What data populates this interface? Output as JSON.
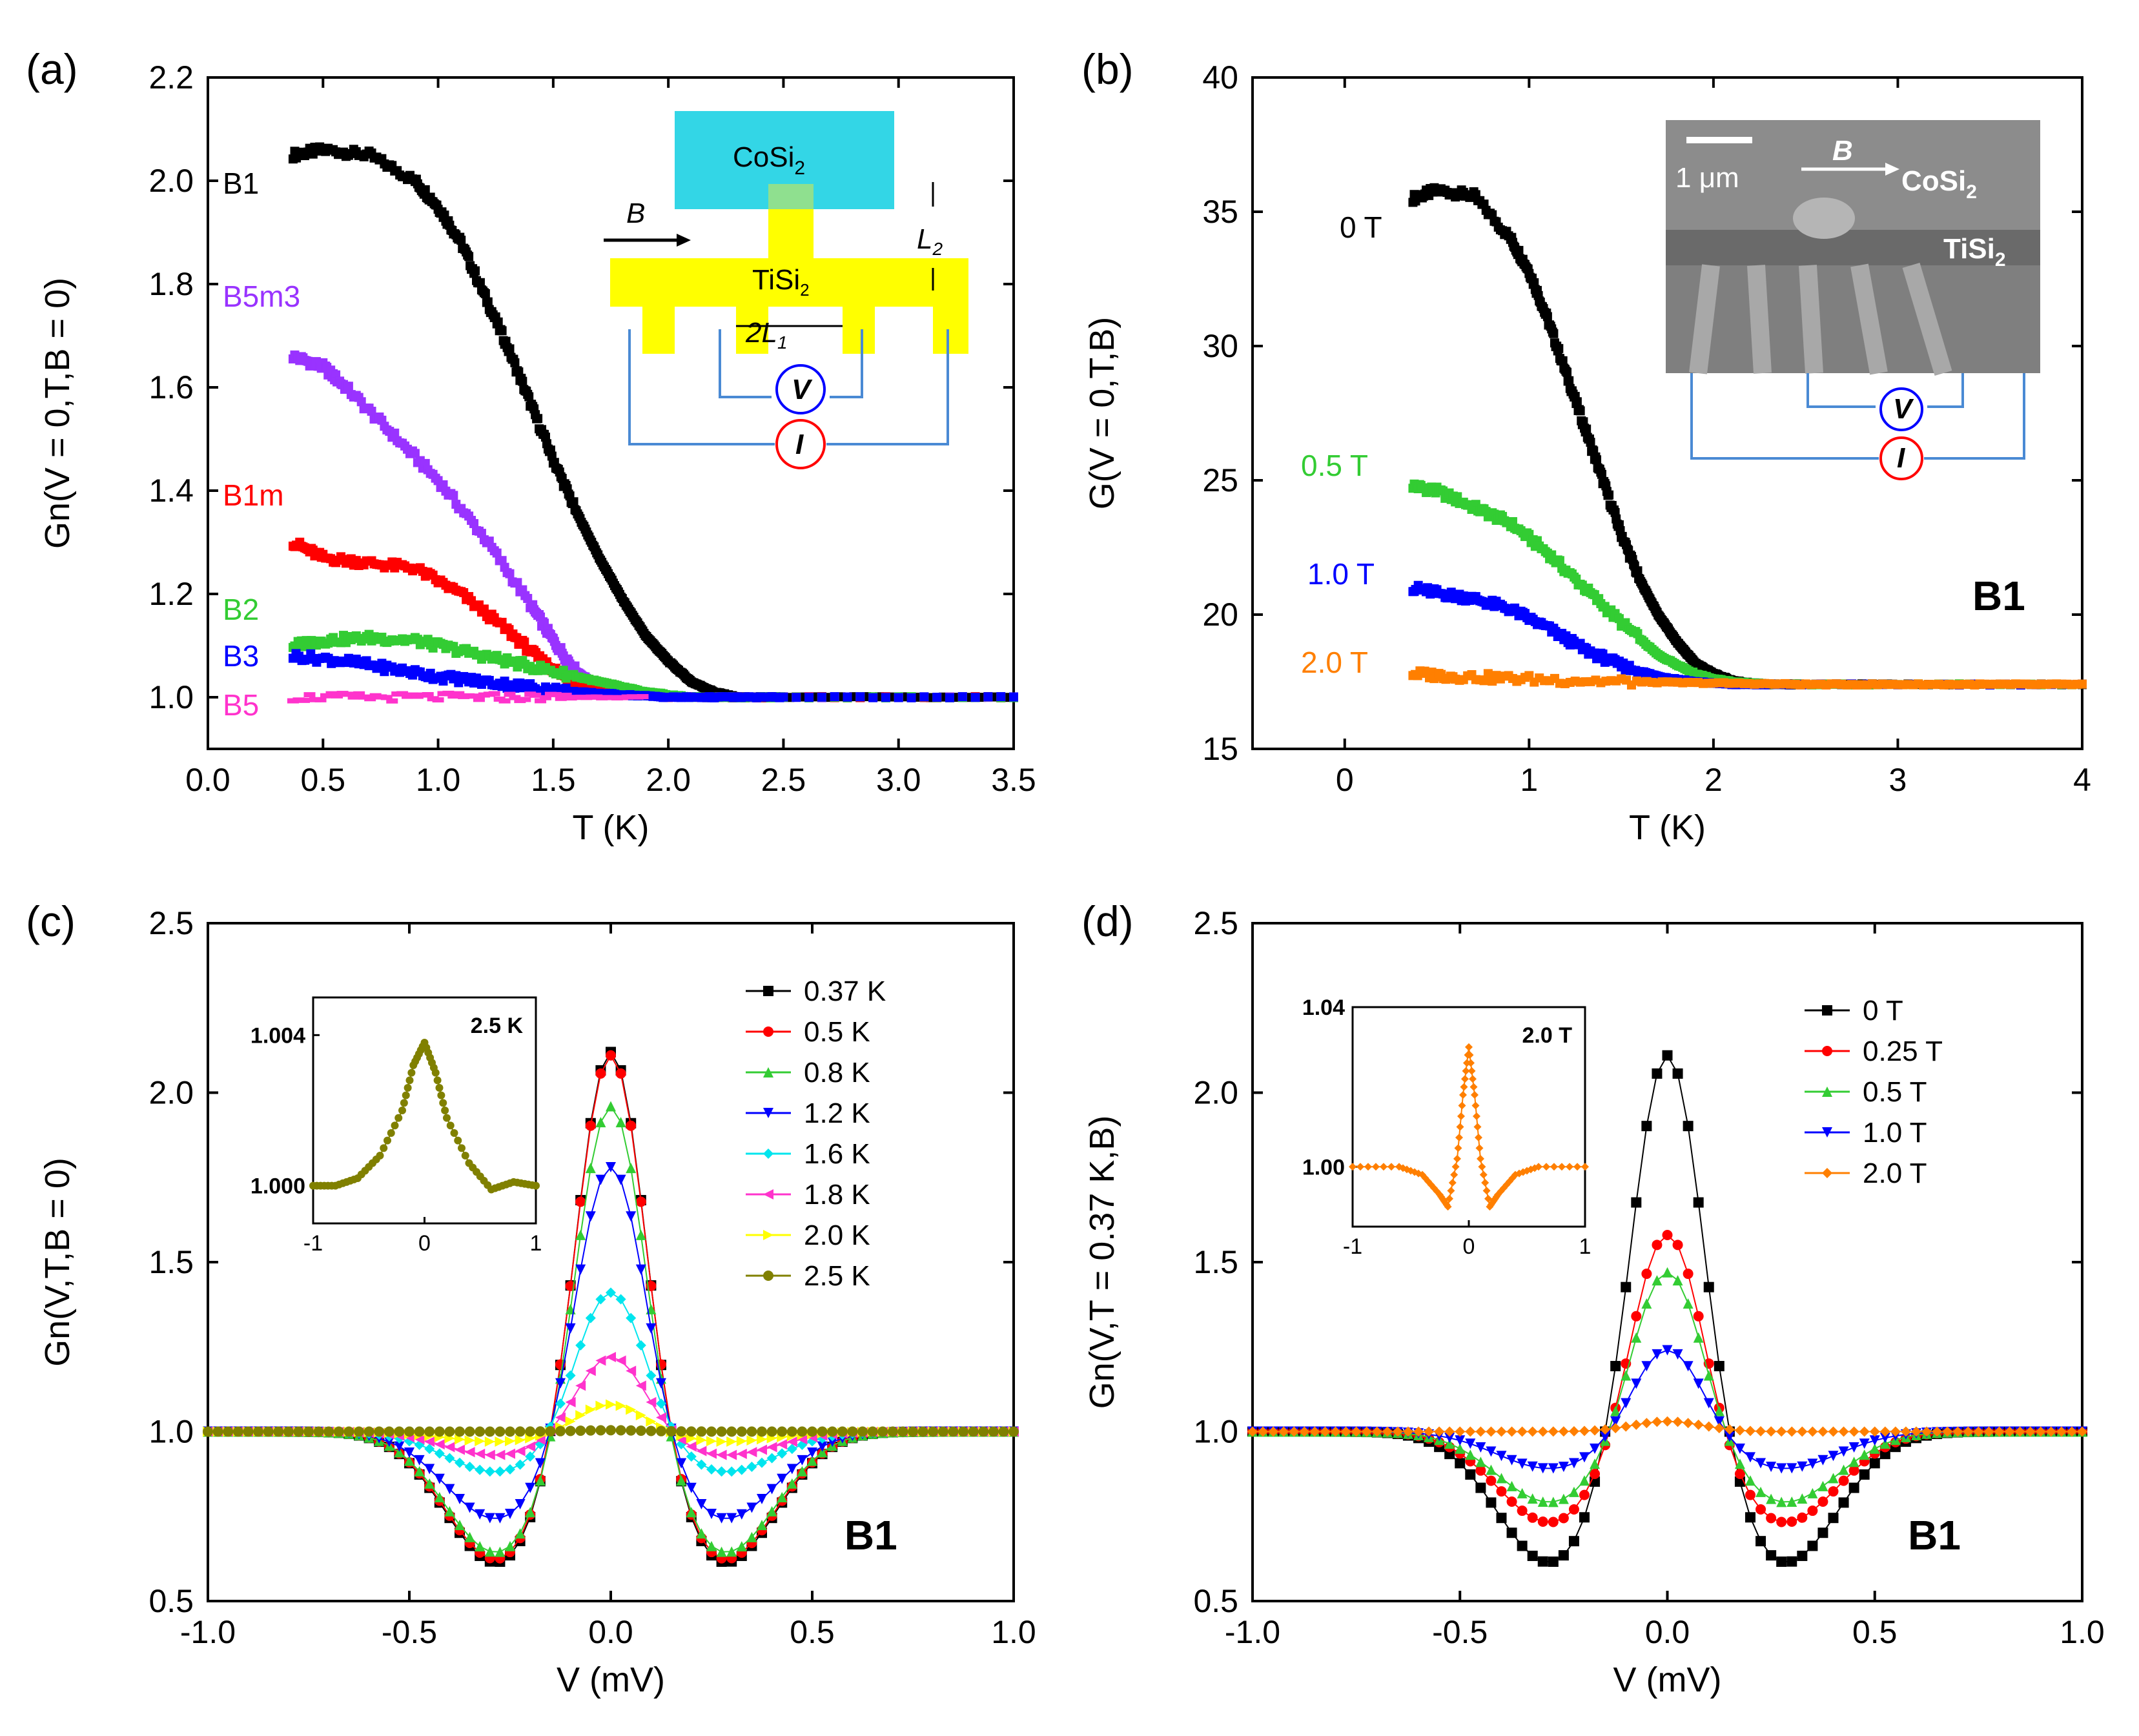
{
  "chart_data": [
    {
      "panel": "(a)",
      "type": "scatter",
      "xlabel": "T (K)",
      "ylabel": "Gn(V = 0,T,B = 0)",
      "xlim": [
        0.0,
        3.5
      ],
      "ylim": [
        0.9,
        2.2
      ],
      "xticks": [
        "0.0",
        "0.5",
        "1.0",
        "1.5",
        "2.0",
        "2.5",
        "3.0",
        "3.5"
      ],
      "yticks": [
        "1.0",
        "1.2",
        "1.4",
        "1.6",
        "1.8",
        "2.0",
        "2.2"
      ],
      "inset": {
        "material_top": "CoSi2",
        "material_bottom": "TiSi2",
        "field": "B",
        "length1": "2L1",
        "length2": "L2",
        "voltmeter": "V",
        "current": "I"
      },
      "series": [
        {
          "name": "B1",
          "color": "#000000",
          "x": [
            0.37,
            0.5,
            0.7,
            0.9,
            1.0,
            1.1,
            1.2,
            1.3,
            1.4,
            1.5,
            1.6,
            1.7,
            1.8,
            1.9,
            2.0,
            2.1,
            2.2,
            2.3,
            2.5,
            3.0,
            3.5
          ],
          "y": [
            2.05,
            2.06,
            2.05,
            2.0,
            1.95,
            1.88,
            1.78,
            1.68,
            1.57,
            1.46,
            1.36,
            1.27,
            1.19,
            1.12,
            1.07,
            1.03,
            1.01,
            1.0,
            1.0,
            1.0,
            1.0
          ]
        },
        {
          "name": "B5m3",
          "color": "#9933ff",
          "x": [
            0.37,
            0.5,
            0.6,
            0.8,
            1.0,
            1.2,
            1.4,
            1.5,
            1.6,
            1.7,
            1.8,
            2.0,
            2.5,
            3.5
          ],
          "y": [
            1.66,
            1.64,
            1.6,
            1.51,
            1.42,
            1.31,
            1.18,
            1.11,
            1.05,
            1.02,
            1.01,
            1.0,
            1.0,
            1.0
          ]
        },
        {
          "name": "B1m",
          "color": "#ff0000",
          "x": [
            0.37,
            0.5,
            0.7,
            0.9,
            1.1,
            1.3,
            1.45,
            1.55,
            1.65,
            1.8,
            2.0,
            2.5,
            3.5
          ],
          "y": [
            1.3,
            1.27,
            1.26,
            1.25,
            1.2,
            1.13,
            1.07,
            1.04,
            1.02,
            1.01,
            1.0,
            1.0,
            1.0
          ]
        },
        {
          "name": "B2",
          "color": "#33cc33",
          "x": [
            0.37,
            0.5,
            0.7,
            0.9,
            1.1,
            1.3,
            1.5,
            1.7,
            1.9,
            2.1,
            2.3,
            2.5,
            3.5
          ],
          "y": [
            1.1,
            1.11,
            1.115,
            1.11,
            1.09,
            1.07,
            1.05,
            1.03,
            1.01,
            1.0,
            1.0,
            1.0,
            1.0
          ]
        },
        {
          "name": "B3",
          "color": "#0000ff",
          "x": [
            0.37,
            0.6,
            0.8,
            1.0,
            1.2,
            1.4,
            1.6,
            1.8,
            2.0,
            2.2,
            2.5,
            3.5
          ],
          "y": [
            1.08,
            1.07,
            1.055,
            1.04,
            1.03,
            1.02,
            1.01,
            1.005,
            1.0,
            1.0,
            1.0,
            1.0
          ]
        },
        {
          "name": "B5",
          "color": "#ff33cc",
          "x": [
            0.37,
            0.8,
            1.2,
            1.6,
            2.0,
            2.5,
            3.0,
            3.5
          ],
          "y": [
            1.0,
            1.0,
            1.0,
            1.0,
            1.0,
            1.0,
            1.0,
            1.0
          ]
        }
      ]
    },
    {
      "panel": "(b)",
      "type": "scatter",
      "xlabel": "T (K)",
      "ylabel": "G(V = 0,T,B)",
      "xlim": [
        -0.5,
        4.0
      ],
      "ylim": [
        15,
        40
      ],
      "xticks": [
        "0",
        "1",
        "2",
        "3",
        "4"
      ],
      "yticks": [
        "15",
        "20",
        "25",
        "30",
        "35",
        "40"
      ],
      "annotation": "B1",
      "inset": {
        "scale_bar": "1 μm",
        "field": "B",
        "material_top": "CoSi2",
        "material_bottom": "TiSi2",
        "voltmeter": "V",
        "current": "I"
      },
      "series": [
        {
          "name": "0 T",
          "color": "#000000",
          "x": [
            0.37,
            0.5,
            0.7,
            0.9,
            1.0,
            1.1,
            1.2,
            1.3,
            1.4,
            1.5,
            1.6,
            1.7,
            1.8,
            1.9,
            2.0,
            2.1,
            2.2,
            2.3,
            2.5,
            3.0,
            4.0
          ],
          "y": [
            35.5,
            35.8,
            35.6,
            34.0,
            32.8,
            31.0,
            29.0,
            27.0,
            25.0,
            23.0,
            21.3,
            20.0,
            19.0,
            18.2,
            17.8,
            17.55,
            17.45,
            17.4,
            17.4,
            17.4,
            17.4
          ]
        },
        {
          "name": "0.5 T",
          "color": "#33cc33",
          "x": [
            0.37,
            0.5,
            0.7,
            0.9,
            1.1,
            1.3,
            1.5,
            1.7,
            1.9,
            2.0,
            2.1,
            2.3,
            3.0,
            4.0
          ],
          "y": [
            24.8,
            24.6,
            24.0,
            23.4,
            22.3,
            21.0,
            19.7,
            18.5,
            17.8,
            17.6,
            17.5,
            17.4,
            17.4,
            17.4
          ]
        },
        {
          "name": "1.0 T",
          "color": "#0000ff",
          "x": [
            0.37,
            0.5,
            0.7,
            0.9,
            1.1,
            1.3,
            1.5,
            1.7,
            1.9,
            2.1,
            2.5,
            4.0
          ],
          "y": [
            21.0,
            20.8,
            20.6,
            20.2,
            19.5,
            18.7,
            18.1,
            17.7,
            17.5,
            17.4,
            17.4,
            17.4
          ]
        },
        {
          "name": "2.0 T",
          "color": "#ff7f00",
          "x": [
            0.37,
            0.6,
            1.0,
            1.5,
            2.0,
            2.5,
            3.0,
            3.5,
            4.0
          ],
          "y": [
            17.8,
            17.7,
            17.6,
            17.5,
            17.45,
            17.4,
            17.4,
            17.4,
            17.4
          ]
        }
      ]
    },
    {
      "panel": "(c)",
      "type": "line",
      "xlabel": "V (mV)",
      "ylabel": "Gn(V,T,B = 0)",
      "xlim": [
        -1.0,
        1.0
      ],
      "ylim": [
        0.5,
        2.5
      ],
      "xticks": [
        "-1.0",
        "-0.5",
        "0.0",
        "0.5",
        "1.0"
      ],
      "yticks": [
        "0.5",
        "1.0",
        "1.5",
        "2.0",
        "2.5"
      ],
      "annotation": "B1",
      "inset": {
        "label": "2.5 K",
        "xticks": [
          "-1",
          "0",
          "1"
        ],
        "yticks": [
          "1.000",
          "1.004"
        ],
        "xlim": [
          -1,
          1
        ],
        "ylim": [
          0.999,
          1.005
        ],
        "x": [
          -1.0,
          -0.8,
          -0.6,
          -0.4,
          -0.2,
          -0.1,
          0.0,
          0.1,
          0.2,
          0.4,
          0.6,
          0.8,
          1.0
        ],
        "y": [
          1.0,
          1.0,
          1.0002,
          1.0008,
          1.002,
          1.0032,
          1.0038,
          1.003,
          1.0018,
          1.0006,
          0.9999,
          1.0001,
          1.0
        ]
      },
      "series": [
        {
          "name": "0.37 K",
          "color": "#000000",
          "amp": 1.12,
          "depth": 0.39
        },
        {
          "name": "0.5 K",
          "color": "#ff0000",
          "amp": 1.11,
          "depth": 0.38
        },
        {
          "name": "0.8 K",
          "color": "#33cc33",
          "amp": 0.96,
          "depth": 0.36
        },
        {
          "name": "1.2 K",
          "color": "#0000ff",
          "amp": 0.78,
          "depth": 0.26
        },
        {
          "name": "1.6 K",
          "color": "#00e5ee",
          "amp": 0.41,
          "depth": 0.12
        },
        {
          "name": "1.8 K",
          "color": "#ff33cc",
          "amp": 0.22,
          "depth": 0.07
        },
        {
          "name": "2.0 K",
          "color": "#ffff00",
          "amp": 0.08,
          "depth": 0.03
        },
        {
          "name": "2.5 K",
          "color": "#808000",
          "amp": 0.004,
          "depth": 0.0
        }
      ]
    },
    {
      "panel": "(d)",
      "type": "line",
      "xlabel": "V (mV)",
      "ylabel": "Gn(V,T = 0.37 K,B)",
      "xlim": [
        -1.0,
        1.0
      ],
      "ylim": [
        0.5,
        2.5
      ],
      "xticks": [
        "-1.0",
        "-0.5",
        "0.0",
        "0.5",
        "1.0"
      ],
      "yticks": [
        "0.5",
        "1.0",
        "1.5",
        "2.0",
        "2.5"
      ],
      "annotation": "B1",
      "inset": {
        "label": "2.0 T",
        "xticks": [
          "-1",
          "0",
          "1"
        ],
        "yticks": [
          "1.00",
          "1.04"
        ],
        "xlim": [
          -1,
          1
        ],
        "ylim": [
          0.985,
          1.04
        ],
        "x": [
          -1.0,
          -0.6,
          -0.4,
          -0.25,
          -0.18,
          -0.1,
          -0.05,
          0.0,
          0.05,
          0.1,
          0.18,
          0.25,
          0.4,
          0.6,
          1.0
        ],
        "y": [
          1.0,
          1.0,
          0.998,
          0.993,
          0.99,
          1.002,
          1.018,
          1.03,
          1.018,
          1.002,
          0.99,
          0.993,
          0.998,
          1.0,
          1.0
        ]
      },
      "series": [
        {
          "name": "0 T",
          "color": "#000000",
          "amp": 1.11,
          "depth": 0.39
        },
        {
          "name": "0.25 T",
          "color": "#ff0000",
          "amp": 0.58,
          "depth": 0.27
        },
        {
          "name": "0.5 T",
          "color": "#33cc33",
          "amp": 0.47,
          "depth": 0.21
        },
        {
          "name": "1.0 T",
          "color": "#0000ff",
          "amp": 0.24,
          "depth": 0.11
        },
        {
          "name": "2.0 T",
          "color": "#ff7f00",
          "amp": 0.03,
          "depth": 0.0
        }
      ]
    }
  ],
  "labels": {
    "a": "(a)",
    "b": "(b)",
    "c": "(c)",
    "d": "(d)"
  }
}
